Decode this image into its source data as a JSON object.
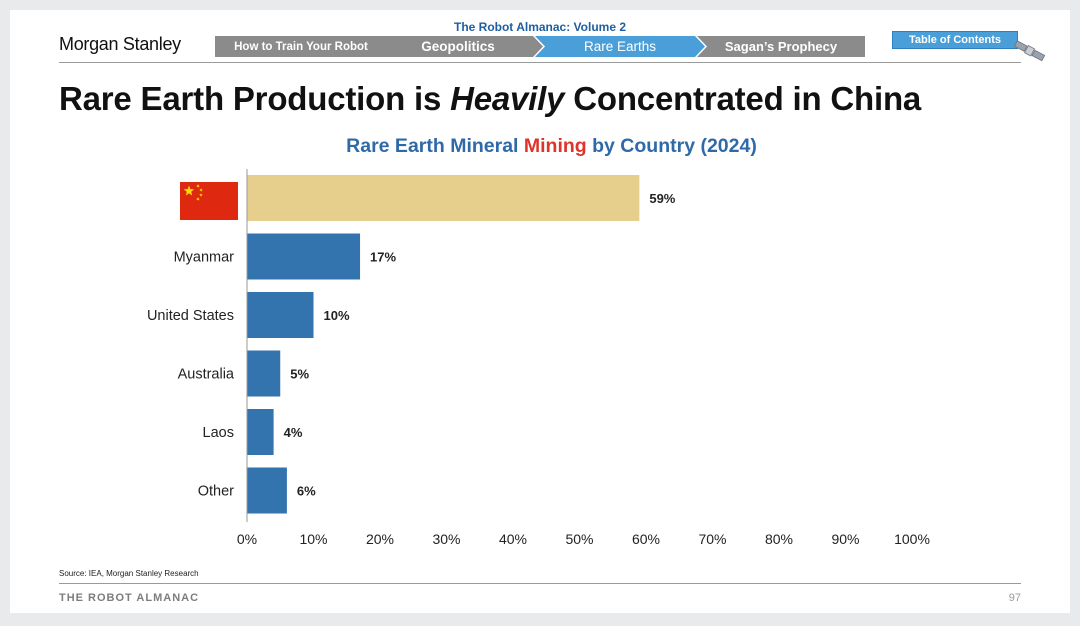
{
  "header": {
    "logo": "Morgan Stanley",
    "series_title": "The Robot Almanac: Volume 2",
    "breadcrumbs": [
      "How to Train Your Robot",
      "Geopolitics",
      "Rare Earths",
      "Sagan’s Prophecy"
    ],
    "active_crumb": "Rare Earths",
    "toc_label": "Table of Contents"
  },
  "headline": {
    "before": "Rare Earth Production is ",
    "emphasis": "Heavily",
    "after": " Concentrated in China"
  },
  "chart_title": {
    "before": "Rare Earth Mineral ",
    "highlight": "Mining",
    "after": " by Country (2024)"
  },
  "chart_data": {
    "type": "bar",
    "orientation": "horizontal",
    "title": "Rare Earth Mineral Mining by Country (2024)",
    "categories": [
      "China",
      "Myanmar",
      "United States",
      "Australia",
      "Laos",
      "Other"
    ],
    "category_labels": [
      "",
      "Myanmar",
      "United States",
      "Australia",
      "Laos",
      "Other"
    ],
    "values": [
      59,
      17,
      10,
      5,
      4,
      6
    ],
    "data_labels": [
      "59%",
      "17%",
      "10%",
      "5%",
      "4%",
      "6%"
    ],
    "xlim": [
      0,
      100
    ],
    "x_ticks": [
      0,
      10,
      20,
      30,
      40,
      50,
      60,
      70,
      80,
      90,
      100
    ],
    "x_tick_labels": [
      "0%",
      "10%",
      "20%",
      "30%",
      "40%",
      "50%",
      "60%",
      "70%",
      "80%",
      "90%",
      "100%"
    ],
    "colors": [
      "#e6cf8c",
      "#3373ae",
      "#3373ae",
      "#3373ae",
      "#3373ae",
      "#3373ae"
    ],
    "grid": false,
    "legend": "none",
    "first_category_icon": "china-flag-icon"
  },
  "footer": {
    "source": "Source: IEA, Morgan Stanley Research",
    "left": "THE ROBOT ALMANAC",
    "page": "97"
  }
}
